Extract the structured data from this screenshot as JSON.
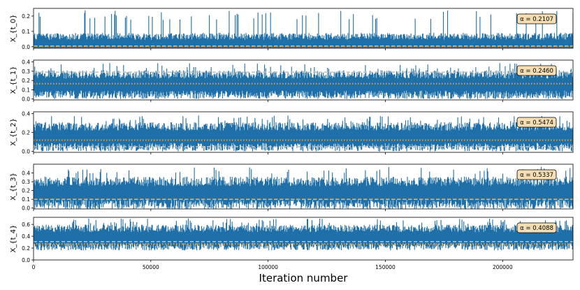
{
  "chart_data": [
    {
      "type": "line",
      "ylabel": "X_{t_0}",
      "ylim": [
        -0.01,
        0.25
      ],
      "yticks": [
        "0.0",
        "0.1",
        "0.2"
      ],
      "ytick_values": [
        0.0,
        0.1,
        0.2
      ],
      "annotation": "α = 0.2107",
      "series": [
        {
          "level_mean": 0.02,
          "spike_max": 0.24,
          "noise": 0.05
        }
      ],
      "reference_lines": [
        {
          "style": "dashed",
          "color": "#c0c0c0",
          "y": 0.005
        },
        {
          "style": "dotted",
          "color": "#f0a030",
          "y": 0.002
        }
      ]
    },
    {
      "type": "line",
      "ylabel": "X_{t_1}",
      "ylim": [
        -0.01,
        0.42
      ],
      "yticks": [
        "0.0",
        "0.1",
        "0.2",
        "0.3",
        "0.4"
      ],
      "ytick_values": [
        0.0,
        0.1,
        0.2,
        0.3,
        0.4
      ],
      "annotation": "α = 0.2460",
      "series": [
        {
          "level_mean": 0.17,
          "spike_max": 0.39,
          "noise": 0.1
        }
      ],
      "reference_lines": [
        {
          "style": "dashed",
          "color": "#c0c0c0",
          "y": 0.29
        },
        {
          "style": "dotted",
          "color": "#f0a030",
          "y": 0.165
        }
      ]
    },
    {
      "type": "line",
      "ylabel": "X_{t_2}",
      "ylim": [
        -0.01,
        0.42
      ],
      "yticks": [
        "0.0",
        "0.2",
        "0.4"
      ],
      "ytick_values": [
        0.0,
        0.2,
        0.4
      ],
      "annotation": "α = 0.5474",
      "series": [
        {
          "level_mean": 0.17,
          "spike_max": 0.38,
          "noise": 0.1
        }
      ],
      "reference_lines": [
        {
          "style": "dashed",
          "color": "#c0c0c0",
          "y": 0.05
        },
        {
          "style": "dotted",
          "color": "#f0a030",
          "y": 0.12
        }
      ]
    },
    {
      "type": "line",
      "ylabel": "X_{t_3}",
      "ylim": [
        -0.01,
        0.5
      ],
      "yticks": [
        "0.0",
        "0.1",
        "0.2",
        "0.3",
        "0.4"
      ],
      "ytick_values": [
        0.0,
        0.1,
        0.2,
        0.3,
        0.4
      ],
      "annotation": "α = 0.5337",
      "series": [
        {
          "level_mean": 0.19,
          "spike_max": 0.47,
          "noise": 0.12
        }
      ],
      "reference_lines": [
        {
          "style": "dashed",
          "color": "#c0c0c0",
          "y": 0.1
        },
        {
          "style": "dotted",
          "color": "#f0a030",
          "y": 0.1
        }
      ]
    },
    {
      "type": "line",
      "ylabel": "X_{t_4}",
      "ylim": [
        0.0,
        0.72
      ],
      "yticks": [
        "0.0",
        "0.2",
        "0.4",
        "0.6"
      ],
      "ytick_values": [
        0.0,
        0.2,
        0.4,
        0.6
      ],
      "annotation": "α = 0.4088",
      "series": [
        {
          "level_mean": 0.4,
          "spike_max": 0.7,
          "noise": 0.14
        }
      ],
      "reference_lines": [
        {
          "style": "dashed",
          "color": "#c0c0c0",
          "y": 0.31
        },
        {
          "style": "dotted",
          "color": "#f0a030",
          "y": 0.27
        }
      ]
    }
  ],
  "shared_x": {
    "xlabel": "Iteration number",
    "xlim": [
      0,
      230000
    ],
    "xticks": [
      "0",
      "50000",
      "100000",
      "150000",
      "200000"
    ],
    "xtick_values": [
      0,
      50000,
      100000,
      150000,
      200000
    ]
  },
  "colors": {
    "trace": "#1f6fa8",
    "dashed_line": "#c0c0c0",
    "dotted_line": "#f0a030",
    "annotation_fill": "#f5deb3",
    "annotation_edge": "#000000"
  }
}
